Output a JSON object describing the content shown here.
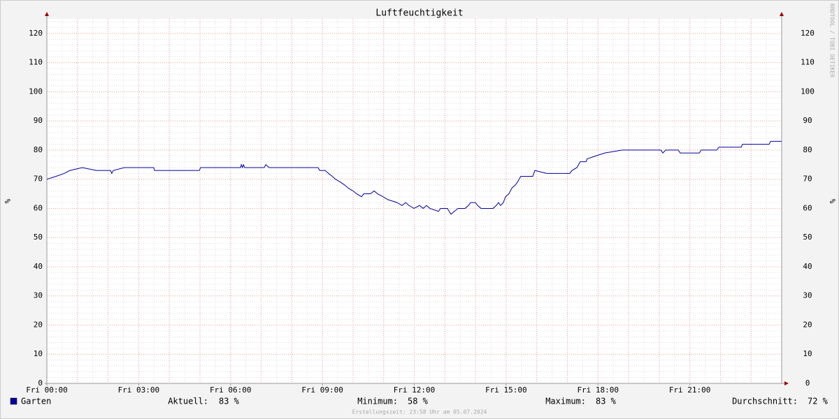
{
  "chart_data": {
    "type": "line",
    "title": "Luftfeuchtigkeit",
    "y_label": "%",
    "watermark": "RRDTOOL / TOBI OETIKER",
    "x": [
      0,
      0.3,
      0.57,
      0.75,
      1.16,
      1.62,
      2.08,
      2.12,
      2.17,
      2.53,
      3.49,
      3.52,
      4.98,
      5.02,
      6.33,
      6.35,
      6.39,
      6.42,
      6.46,
      7.1,
      7.15,
      7.26,
      8.86,
      8.91,
      9.09,
      9.2,
      9.32,
      9.43,
      9.59,
      9.73,
      9.84,
      10.0,
      10.12,
      10.28,
      10.35,
      10.57,
      10.69,
      10.8,
      10.98,
      11.14,
      11.44,
      11.6,
      11.72,
      11.83,
      11.99,
      12.17,
      12.29,
      12.4,
      12.51,
      12.79,
      12.86,
      13.08,
      13.2,
      13.31,
      13.43,
      13.66,
      13.77,
      13.84,
      14.0,
      14.07,
      14.18,
      14.57,
      14.68,
      14.75,
      14.82,
      14.91,
      14.98,
      15.09,
      15.19,
      15.3,
      15.37,
      15.48,
      15.87,
      15.94,
      16.33,
      17.08,
      17.15,
      17.31,
      17.42,
      17.61,
      17.65,
      17.93,
      18.22,
      18.79,
      20.05,
      20.12,
      20.21,
      20.62,
      20.69,
      21.31,
      21.37,
      21.88,
      21.95,
      22.68,
      22.72,
      23.59,
      23.64,
      24.0
    ],
    "series": [
      {
        "name": "Garten",
        "color": "#0000a0",
        "values": [
          70,
          71,
          72,
          73,
          74,
          73,
          73,
          72,
          73,
          74,
          74,
          73,
          73,
          74,
          74,
          75,
          74,
          75,
          74,
          74,
          75,
          74,
          74,
          73,
          73,
          72,
          71,
          70,
          69,
          68,
          67,
          66,
          65,
          64,
          65,
          65,
          66,
          65,
          64,
          63,
          62,
          61,
          62,
          61,
          60,
          61,
          60,
          61,
          60,
          59,
          60,
          60,
          58,
          59,
          60,
          60,
          61,
          62,
          62,
          61,
          60,
          60,
          61,
          62,
          61,
          62,
          64,
          65,
          67,
          68,
          69,
          71,
          71,
          73,
          72,
          72,
          73,
          74,
          76,
          76,
          77,
          78,
          79,
          80,
          80,
          79,
          80,
          80,
          79,
          79,
          80,
          80,
          81,
          81,
          82,
          82,
          83,
          83
        ]
      }
    ],
    "xlim": [
      0,
      24
    ],
    "xticks": [
      {
        "value": 0,
        "label": "Fri 00:00"
      },
      {
        "value": 3,
        "label": "Fri 03:00"
      },
      {
        "value": 6,
        "label": "Fri 06:00"
      },
      {
        "value": 9,
        "label": "Fri 09:00"
      },
      {
        "value": 12,
        "label": "Fri 12:00"
      },
      {
        "value": 15,
        "label": "Fri 15:00"
      },
      {
        "value": 18,
        "label": "Fri 18:00"
      },
      {
        "value": 21,
        "label": "Fri 21:00"
      }
    ],
    "ylim": [
      0,
      125
    ],
    "yticks": [
      0,
      10,
      20,
      30,
      40,
      50,
      60,
      70,
      80,
      90,
      100,
      110,
      120
    ],
    "grid": {
      "x_major": 1,
      "x_minor": 0.5,
      "y_minor": 2
    },
    "stats": [
      {
        "label": "Aktuell:",
        "text": "83 %"
      },
      {
        "label": "Minimum:",
        "text": "58 %"
      },
      {
        "label": "Maximum:",
        "text": "83 %"
      },
      {
        "label": "Durchschnitt:",
        "text": "72 %"
      }
    ],
    "footer": "Erstellungszeit: 23:58 Uhr am 05.07.2024"
  }
}
